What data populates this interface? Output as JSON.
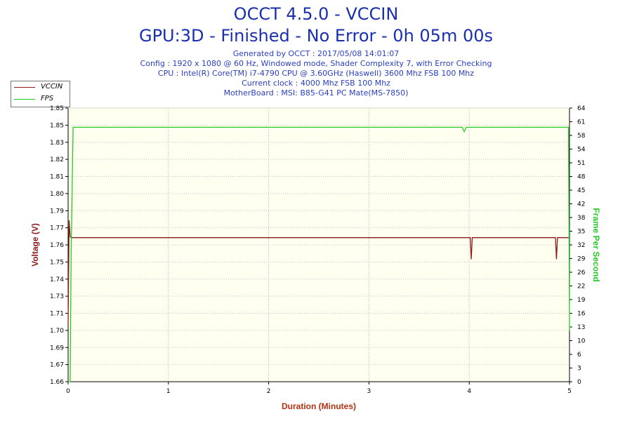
{
  "header": {
    "title": "OCCT 4.5.0 - VCCIN",
    "subtitle": "GPU:3D - Finished - No Error - 0h 05m 00s",
    "info_lines": [
      "Generated by OCCT : 2017/05/08 14:01:07",
      "Config : 1920 x 1080 @ 60 Hz, Windowed mode, Shader Complexity 7, with Error Checking",
      "CPU : Intel(R) Core(TM) i7-4790 CPU @ 3.60GHz (Haswell) 3600 Mhz FSB 100 Mhz",
      "Current clock : 4000 Mhz FSB 100 Mhz",
      "MotherBoard : MSI: B85-G41 PC Mate(MS-7850)"
    ]
  },
  "colors": {
    "vccin": "#8b1a1a",
    "fps": "#22cc22",
    "plot_bg": "#fffff0",
    "title": "#1a2fb0",
    "xlabel": "#b03010"
  },
  "chart_data": {
    "type": "line",
    "title": "OCCT 4.5.0 - VCCIN",
    "xlabel": "Duration (Minutes)",
    "ylabel": "Voltage (V)",
    "y2label": "Frame Per Second",
    "xlim": [
      0,
      5
    ],
    "ylim": [
      1.66,
      1.85
    ],
    "y2lim": [
      0,
      64
    ],
    "x_ticks": [
      "0",
      "1",
      "2",
      "3",
      "4",
      "5"
    ],
    "y_ticks": [
      "1.66",
      "1.67",
      "1.69",
      "1.70",
      "1.71",
      "1.73",
      "1.74",
      "1.75",
      "1.76",
      "1.77",
      "1.79",
      "1.80",
      "1.81",
      "1.82",
      "1.83",
      "1.85",
      "1.85"
    ],
    "y2_ticks": [
      "0",
      "3",
      "6",
      "10",
      "13",
      "16",
      "19",
      "22",
      "26",
      "29",
      "32",
      "35",
      "38",
      "42",
      "45",
      "48",
      "51",
      "54",
      "58",
      "61",
      "64"
    ],
    "grid": true,
    "legend": "top-left",
    "series": [
      {
        "name": "VCCIN",
        "axis": "left",
        "x": [
          0,
          0.01,
          0.02,
          0.03,
          0.04,
          4.0,
          4.01,
          4.02,
          4.03,
          4.04,
          4.85,
          4.86,
          4.87,
          4.88,
          4.89,
          5.0
        ],
        "y": [
          1.7,
          1.772,
          1.761,
          1.76,
          1.76,
          1.76,
          1.76,
          1.745,
          1.76,
          1.76,
          1.76,
          1.76,
          1.745,
          1.76,
          1.76,
          1.76
        ]
      },
      {
        "name": "FPS",
        "axis": "right",
        "x": [
          0,
          0.02,
          0.03,
          0.05,
          3.9,
          3.93,
          3.95,
          3.97,
          4.99,
          5.0
        ],
        "y": [
          0,
          0,
          30,
          59.5,
          59.5,
          59.5,
          58.5,
          59.5,
          59.5,
          12
        ]
      }
    ]
  }
}
